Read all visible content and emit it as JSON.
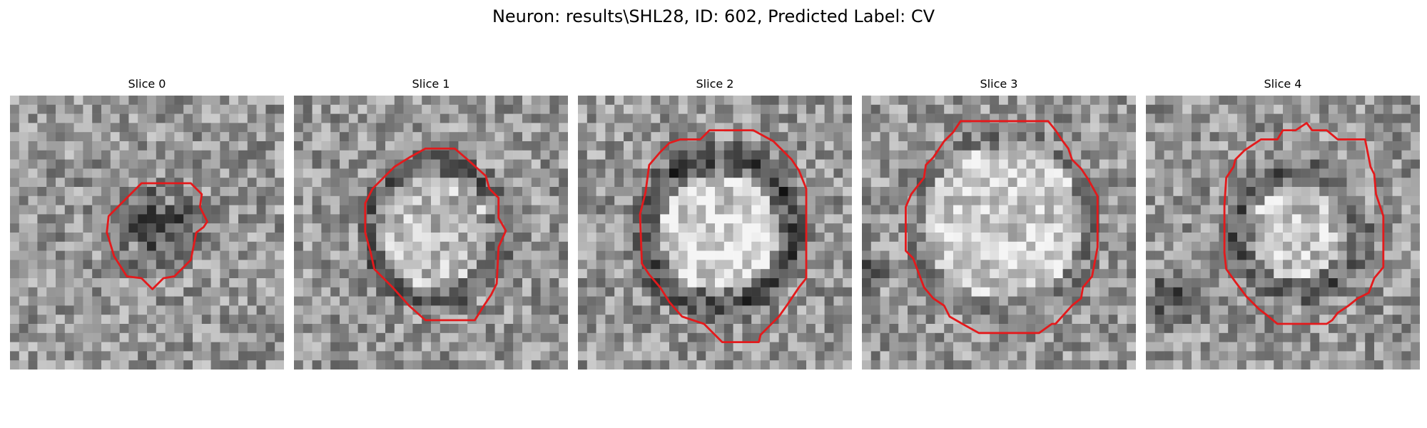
{
  "figure": {
    "title": "Neuron: results\\SHL28, ID: 602, Predicted Label: CV"
  },
  "panels": [
    {
      "title": "Slice 0"
    },
    {
      "title": "Slice 1"
    },
    {
      "title": "Slice 2"
    },
    {
      "title": "Slice 3"
    },
    {
      "title": "Slice 4"
    }
  ],
  "colors": {
    "contour": "#e31a1c",
    "background": "#ffffff"
  }
}
